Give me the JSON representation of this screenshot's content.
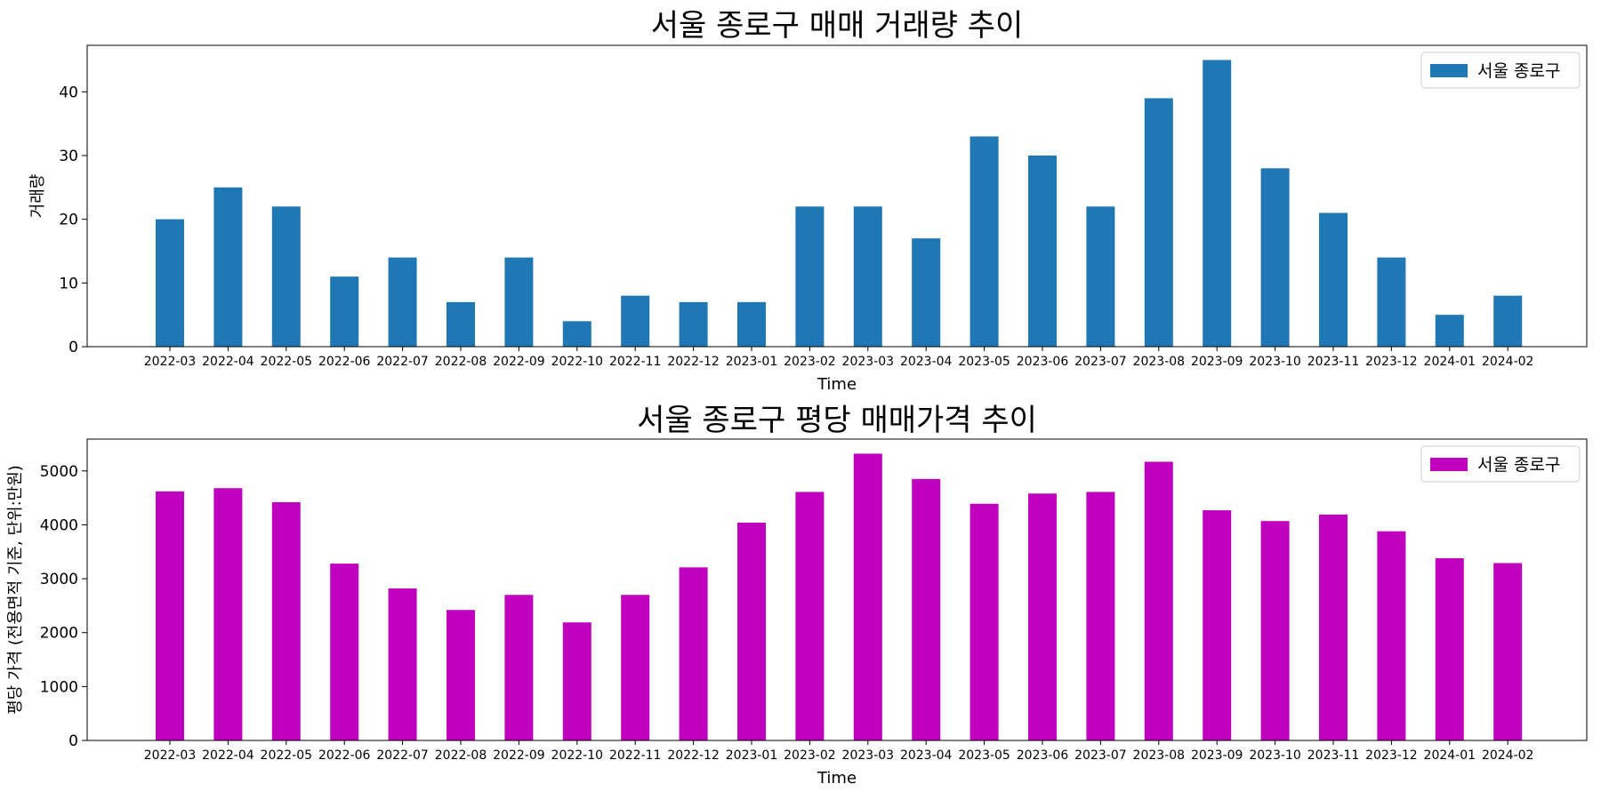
{
  "chart_data": [
    {
      "type": "bar",
      "title": "서울 종로구 매매 거래량 추이",
      "xlabel": "Time",
      "ylabel": "거래량",
      "categories": [
        "2022-03",
        "2022-04",
        "2022-05",
        "2022-06",
        "2022-07",
        "2022-08",
        "2022-09",
        "2022-10",
        "2022-11",
        "2022-12",
        "2023-01",
        "2023-02",
        "2023-03",
        "2023-04",
        "2023-05",
        "2023-06",
        "2023-07",
        "2023-08",
        "2023-09",
        "2023-10",
        "2023-11",
        "2023-12",
        "2024-01",
        "2024-02"
      ],
      "series": [
        {
          "name": "서울 종로구",
          "color": "#1f77b4",
          "values": [
            20,
            25,
            22,
            11,
            14,
            7,
            14,
            4,
            8,
            7,
            7,
            22,
            22,
            17,
            33,
            30,
            22,
            39,
            45,
            28,
            21,
            14,
            5,
            8
          ]
        }
      ],
      "ylim": [
        0,
        47.3
      ],
      "yticks": [
        0,
        10,
        20,
        30,
        40
      ],
      "legend": "top-right",
      "grid": false
    },
    {
      "type": "bar",
      "title": "서울 종로구 평당 매매가격 추이",
      "xlabel": "Time",
      "ylabel": "평당 가격 (전용면적 기준, 단위:만원)",
      "categories": [
        "2022-03",
        "2022-04",
        "2022-05",
        "2022-06",
        "2022-07",
        "2022-08",
        "2022-09",
        "2022-10",
        "2022-11",
        "2022-12",
        "2023-01",
        "2023-02",
        "2023-03",
        "2023-04",
        "2023-05",
        "2023-06",
        "2023-07",
        "2023-08",
        "2023-09",
        "2023-10",
        "2023-11",
        "2023-12",
        "2024-01",
        "2024-02"
      ],
      "series": [
        {
          "name": "서울 종로구",
          "color": "#bf00bf",
          "values": [
            4620,
            4680,
            4420,
            3280,
            2820,
            2420,
            2700,
            2190,
            2700,
            3210,
            4040,
            4610,
            5320,
            4850,
            4390,
            4580,
            4610,
            5170,
            4270,
            4070,
            4190,
            3880,
            3380,
            3290
          ]
        }
      ],
      "ylim": [
        0,
        5590
      ],
      "yticks": [
        0,
        1000,
        2000,
        3000,
        4000,
        5000
      ],
      "legend": "top-right",
      "grid": false
    }
  ]
}
